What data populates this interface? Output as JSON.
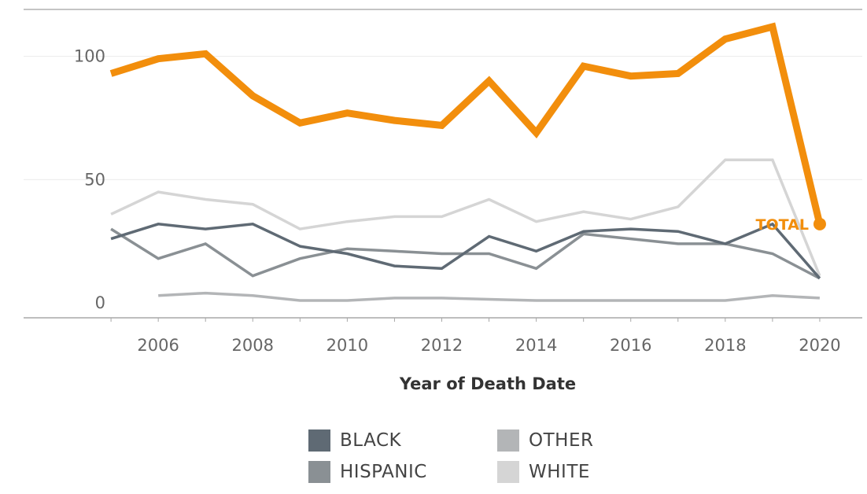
{
  "chart_data": {
    "type": "line",
    "xlabel": "Year of Death Date",
    "ylabel": "",
    "x": [
      2005,
      2006,
      2007,
      2008,
      2009,
      2010,
      2011,
      2012,
      2013,
      2014,
      2015,
      2016,
      2017,
      2018,
      2019,
      2020
    ],
    "xlim": [
      2003.15,
      2020.9
    ],
    "ylim": [
      -6,
      119
    ],
    "x_ticks": [
      2006,
      2008,
      2010,
      2012,
      2014,
      2016,
      2018,
      2020
    ],
    "x_tick_labels": [
      "2006",
      "2008",
      "2010",
      "2012",
      "2014",
      "2016",
      "2018",
      "2020"
    ],
    "y_ticks": [
      0,
      50,
      100
    ],
    "y_tick_labels": [
      "0",
      "50",
      "100"
    ],
    "grid": true,
    "legend_position": "bottom",
    "series": [
      {
        "name": "TOTAL",
        "color": "#f28e0c",
        "values": [
          93,
          99,
          101,
          84,
          73,
          77,
          74,
          72,
          90,
          69,
          96,
          92,
          93,
          107,
          112,
          32
        ]
      },
      {
        "name": "WHITE",
        "color": "#d5d5d5",
        "values": [
          36,
          45,
          42,
          40,
          30,
          33,
          35,
          35,
          42,
          33,
          37,
          34,
          39,
          58,
          58,
          11
        ]
      },
      {
        "name": "HISPANIC",
        "color": "#8a9094",
        "values": [
          30,
          18,
          24,
          11,
          18,
          22,
          21,
          20,
          20,
          14,
          28,
          26,
          24,
          24,
          20,
          10
        ]
      },
      {
        "name": "BLACK",
        "color": "#5f6a74",
        "values": [
          26,
          32,
          30,
          32,
          23,
          20,
          15,
          14,
          27,
          21,
          29,
          30,
          29,
          24,
          32,
          10
        ]
      },
      {
        "name": "OTHER",
        "color": "#b3b5b7",
        "values": [
          null,
          3,
          4,
          3,
          1,
          1,
          2,
          2,
          1.5,
          1,
          1,
          1,
          1,
          1,
          3,
          2
        ]
      }
    ],
    "annotation": {
      "text": "TOTAL",
      "series": "TOTAL",
      "x": 2020
    }
  },
  "legend": {
    "items": [
      {
        "label": "BLACK",
        "color": "#5f6a74"
      },
      {
        "label": "OTHER",
        "color": "#b3b5b7"
      },
      {
        "label": "HISPANIC",
        "color": "#8a9094"
      },
      {
        "label": "WHITE",
        "color": "#d5d5d5"
      }
    ]
  }
}
